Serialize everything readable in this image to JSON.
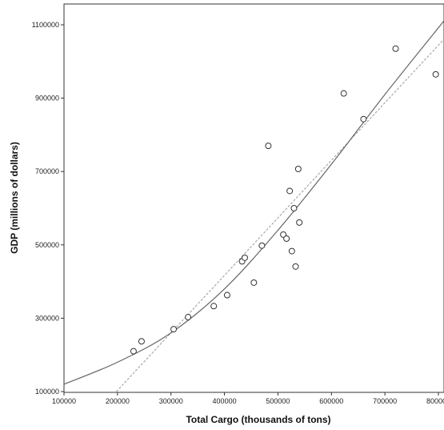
{
  "chart_data": {
    "type": "scatter",
    "title": "",
    "xlabel": "Total Cargo (thousands of tons)",
    "ylabel": "GDP (millions of dollars)",
    "xlim": [
      100000,
      810000
    ],
    "ylim": [
      100000,
      1100000
    ],
    "x_ticks": [
      100000,
      200000,
      300000,
      400000,
      500000,
      600000,
      700000,
      800000
    ],
    "x_tick_labels": [
      "100000",
      "200000",
      "300000",
      "400000",
      "500000",
      "600000",
      "700000",
      "800000"
    ],
    "y_ticks": [
      100000,
      300000,
      500000,
      700000,
      900000,
      1100000
    ],
    "y_tick_labels": [
      "100000",
      "300000",
      "500000",
      "700000",
      "900000",
      "1100000"
    ],
    "grid": false,
    "points": [
      {
        "x": 230000,
        "y": 210000
      },
      {
        "x": 245000,
        "y": 237000
      },
      {
        "x": 305000,
        "y": 270000
      },
      {
        "x": 332000,
        "y": 303000
      },
      {
        "x": 380000,
        "y": 333000
      },
      {
        "x": 405000,
        "y": 363000
      },
      {
        "x": 433000,
        "y": 455000
      },
      {
        "x": 438000,
        "y": 465000
      },
      {
        "x": 455000,
        "y": 397000
      },
      {
        "x": 470000,
        "y": 498000
      },
      {
        "x": 482000,
        "y": 770000
      },
      {
        "x": 510000,
        "y": 528000
      },
      {
        "x": 516000,
        "y": 517000
      },
      {
        "x": 522000,
        "y": 647000
      },
      {
        "x": 526000,
        "y": 483000
      },
      {
        "x": 530000,
        "y": 600000
      },
      {
        "x": 533000,
        "y": 441000
      },
      {
        "x": 538000,
        "y": 707000
      },
      {
        "x": 540000,
        "y": 561000
      },
      {
        "x": 623000,
        "y": 913000
      },
      {
        "x": 660000,
        "y": 843000
      },
      {
        "x": 720000,
        "y": 1035000
      },
      {
        "x": 795000,
        "y": 965000
      }
    ],
    "fit_curve": [
      {
        "x": 100000,
        "y": 120000
      },
      {
        "x": 200000,
        "y": 180000
      },
      {
        "x": 300000,
        "y": 260000
      },
      {
        "x": 400000,
        "y": 380000
      },
      {
        "x": 500000,
        "y": 540000
      },
      {
        "x": 600000,
        "y": 720000
      },
      {
        "x": 700000,
        "y": 910000
      },
      {
        "x": 810000,
        "y": 1110000
      }
    ],
    "fit_line": [
      {
        "x": 198000,
        "y": 100000
      },
      {
        "x": 810000,
        "y": 1060000
      }
    ],
    "colors": {
      "point_stroke": "#333333",
      "curve": "#666666",
      "line": "#999999",
      "axis": "#333333"
    }
  }
}
